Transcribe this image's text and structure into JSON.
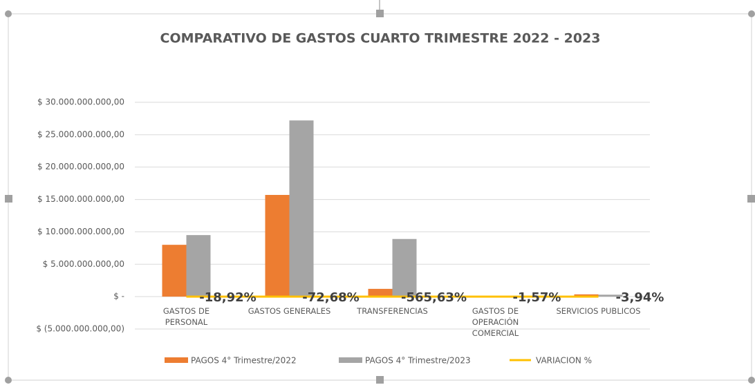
{
  "chart_data": {
    "type": "bar",
    "title": "COMPARATIVO DE GASTOS CUARTO TRIMESTRE 2022 - 2023",
    "categories": [
      "GASTOS DE PERSONAL",
      "GASTOS GENERALES",
      "TRANSFERENCIAS",
      "GASTOS DE OPERACIÓN COMERCIAL",
      "SERVICIOS PUBLICOS"
    ],
    "series": [
      {
        "name": "PAGOS  4° Trimestre/2022",
        "color": "#ed7d31",
        "type": "bar",
        "values": [
          8000000000,
          15700000000,
          1200000000,
          50000000,
          350000000
        ]
      },
      {
        "name": "PAGOS  4° Trimestre/2023",
        "color": "#a5a5a5",
        "type": "bar",
        "values": [
          9500000000,
          27200000000,
          8900000000,
          50000000,
          300000000
        ]
      },
      {
        "name": "VARIACION %",
        "color": "#ffc000",
        "type": "line",
        "values": [
          -18.92,
          -72.68,
          -565.63,
          -1.57,
          -3.94
        ],
        "value_labels": [
          "-18,92%",
          "-72,68%",
          "-565,63%",
          "-1,57%",
          "-3,94%"
        ]
      }
    ],
    "ylim": [
      -5000000000,
      30000000000
    ],
    "yticks": [
      {
        "value": -5000000000,
        "label": "$ (5.000.000.000,00)"
      },
      {
        "value": 0,
        "label": "$ -"
      },
      {
        "value": 5000000000,
        "label": "$ 5.000.000.000,00"
      },
      {
        "value": 10000000000,
        "label": "$ 10.000.000.000,00"
      },
      {
        "value": 15000000000,
        "label": "$ 15.000.000.000,00"
      },
      {
        "value": 20000000000,
        "label": "$ 20.000.000.000,00"
      },
      {
        "value": 25000000000,
        "label": "$ 25.000.000.000,00"
      },
      {
        "value": 30000000000,
        "label": "$ 30.000.000.000,00"
      }
    ],
    "grid": true,
    "legend": "bottom"
  }
}
